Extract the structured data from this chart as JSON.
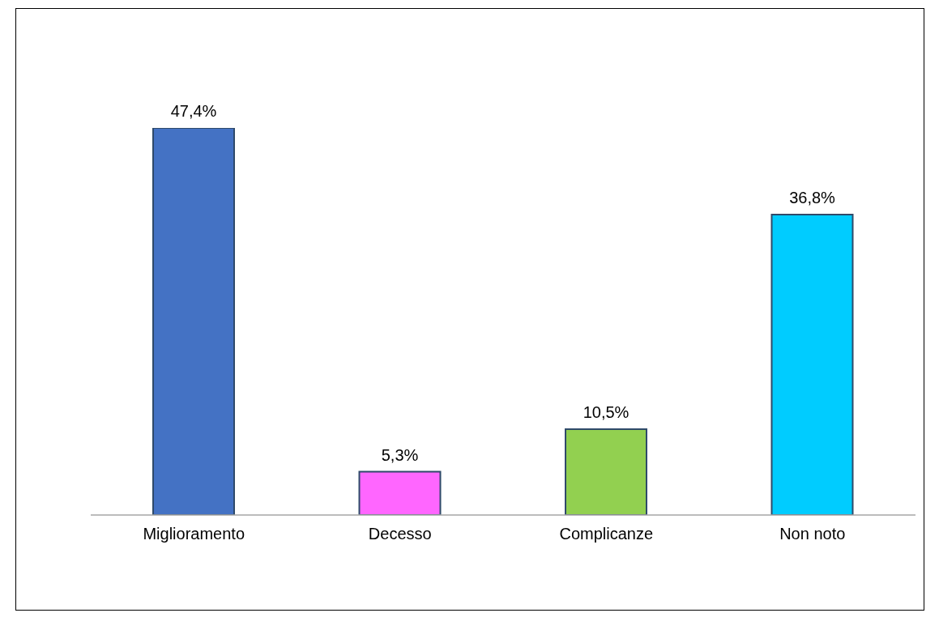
{
  "chart_data": {
    "type": "bar",
    "categories": [
      "Miglioramento",
      "Decesso",
      "Complicanze",
      "Non noto"
    ],
    "values": [
      47.4,
      5.3,
      10.5,
      36.8
    ],
    "colors": [
      "#4472c4",
      "#ff66ff",
      "#92d050",
      "#00ccff"
    ],
    "value_labels": [
      "47,4%",
      "5,3%",
      "10,5%",
      "36,8%"
    ]
  }
}
